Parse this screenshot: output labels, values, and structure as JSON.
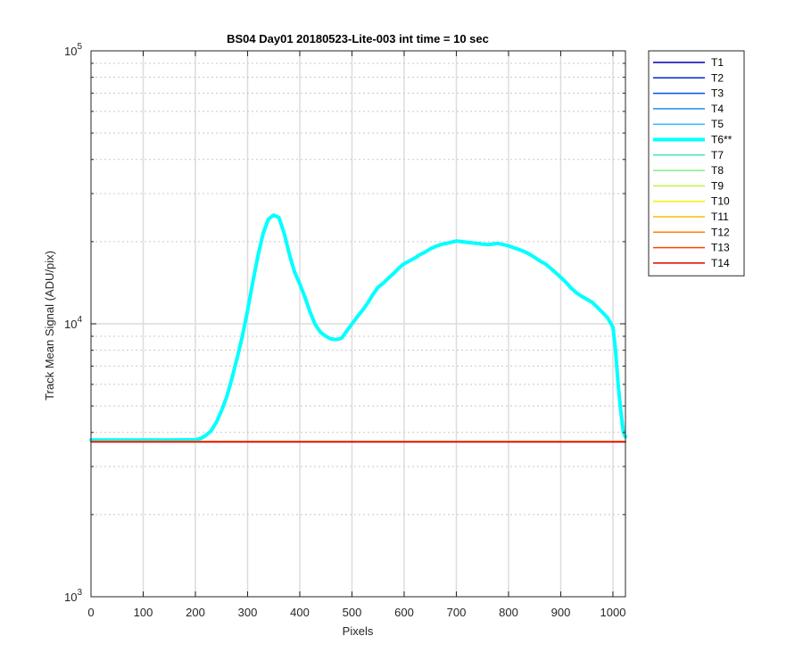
{
  "chart_data": {
    "type": "line",
    "title": "BS04 Day01 20180523-Lite-003 int time = 10 sec",
    "xlabel": "Pixels",
    "ylabel": "Track Mean Signal (ADU/pix)",
    "xlim": [
      0,
      1024
    ],
    "ylim": [
      1000,
      100000
    ],
    "yscale": "log",
    "grid": true,
    "legend_position": "outside-top-right",
    "x_ticks": [
      0,
      100,
      200,
      300,
      400,
      500,
      600,
      700,
      800,
      900,
      1000
    ],
    "y_ticks": [
      {
        "value": 1000,
        "base": "10",
        "exp": "3"
      },
      {
        "value": 10000,
        "base": "10",
        "exp": "4"
      },
      {
        "value": 100000,
        "base": "10",
        "exp": "5"
      }
    ],
    "series": [
      {
        "name": "T1",
        "color": "#0000a8",
        "width": 1.5,
        "flat": 3700
      },
      {
        "name": "T2",
        "color": "#0026d6",
        "width": 1.5,
        "flat": 3700
      },
      {
        "name": "T3",
        "color": "#0050f0",
        "width": 1.5,
        "flat": 3700
      },
      {
        "name": "T4",
        "color": "#1e8ef0",
        "width": 1.5,
        "flat": 3705
      },
      {
        "name": "T5",
        "color": "#30c0f0",
        "width": 1.5,
        "flat": 3710
      },
      {
        "name": "T6**",
        "color": "#00ffff",
        "width": 4,
        "points": [
          [
            0,
            3750
          ],
          [
            50,
            3750
          ],
          [
            100,
            3750
          ],
          [
            150,
            3750
          ],
          [
            200,
            3760
          ],
          [
            210,
            3800
          ],
          [
            220,
            3900
          ],
          [
            230,
            4050
          ],
          [
            240,
            4350
          ],
          [
            250,
            4800
          ],
          [
            260,
            5400
          ],
          [
            270,
            6300
          ],
          [
            280,
            7500
          ],
          [
            290,
            9000
          ],
          [
            300,
            11200
          ],
          [
            310,
            14200
          ],
          [
            320,
            17800
          ],
          [
            330,
            21500
          ],
          [
            340,
            24200
          ],
          [
            350,
            25000
          ],
          [
            360,
            24500
          ],
          [
            370,
            21500
          ],
          [
            380,
            18000
          ],
          [
            390,
            15500
          ],
          [
            400,
            14000
          ],
          [
            410,
            12500
          ],
          [
            420,
            11000
          ],
          [
            430,
            9900
          ],
          [
            440,
            9300
          ],
          [
            450,
            9000
          ],
          [
            460,
            8800
          ],
          [
            470,
            8750
          ],
          [
            480,
            8850
          ],
          [
            490,
            9400
          ],
          [
            500,
            10000
          ],
          [
            510,
            10600
          ],
          [
            520,
            11200
          ],
          [
            530,
            11900
          ],
          [
            540,
            12800
          ],
          [
            550,
            13600
          ],
          [
            560,
            14100
          ],
          [
            570,
            14700
          ],
          [
            580,
            15300
          ],
          [
            590,
            16000
          ],
          [
            600,
            16600
          ],
          [
            610,
            17000
          ],
          [
            620,
            17400
          ],
          [
            630,
            17900
          ],
          [
            640,
            18300
          ],
          [
            650,
            18800
          ],
          [
            660,
            19200
          ],
          [
            670,
            19500
          ],
          [
            680,
            19700
          ],
          [
            690,
            19900
          ],
          [
            700,
            20100
          ],
          [
            710,
            20000
          ],
          [
            720,
            19900
          ],
          [
            730,
            19800
          ],
          [
            740,
            19700
          ],
          [
            750,
            19600
          ],
          [
            760,
            19500
          ],
          [
            770,
            19600
          ],
          [
            780,
            19700
          ],
          [
            790,
            19500
          ],
          [
            800,
            19300
          ],
          [
            810,
            19000
          ],
          [
            820,
            18700
          ],
          [
            830,
            18400
          ],
          [
            840,
            18000
          ],
          [
            850,
            17500
          ],
          [
            860,
            17000
          ],
          [
            870,
            16600
          ],
          [
            880,
            16000
          ],
          [
            890,
            15400
          ],
          [
            900,
            14800
          ],
          [
            910,
            14200
          ],
          [
            920,
            13500
          ],
          [
            930,
            13000
          ],
          [
            940,
            12600
          ],
          [
            950,
            12300
          ],
          [
            960,
            12000
          ],
          [
            970,
            11500
          ],
          [
            980,
            11000
          ],
          [
            990,
            10500
          ],
          [
            1000,
            9700
          ],
          [
            1005,
            8000
          ],
          [
            1010,
            6000
          ],
          [
            1015,
            4800
          ],
          [
            1020,
            4000
          ],
          [
            1024,
            3850
          ]
        ]
      },
      {
        "name": "T7",
        "color": "#40e8c0",
        "width": 1.5,
        "flat": 3710
      },
      {
        "name": "T8",
        "color": "#80f080",
        "width": 1.5,
        "flat": 3710
      },
      {
        "name": "T9",
        "color": "#c0f040",
        "width": 1.5,
        "flat": 3710
      },
      {
        "name": "T10",
        "color": "#f0f000",
        "width": 1.5,
        "flat": 3705
      },
      {
        "name": "T11",
        "color": "#f0c000",
        "width": 1.5,
        "flat": 3700
      },
      {
        "name": "T12",
        "color": "#ff8000",
        "width": 1.5,
        "flat": 3700
      },
      {
        "name": "T13",
        "color": "#ff4000",
        "width": 1.5,
        "flat": 3700
      },
      {
        "name": "T14",
        "color": "#e00000",
        "width": 1.5,
        "flat": 3690
      }
    ]
  }
}
